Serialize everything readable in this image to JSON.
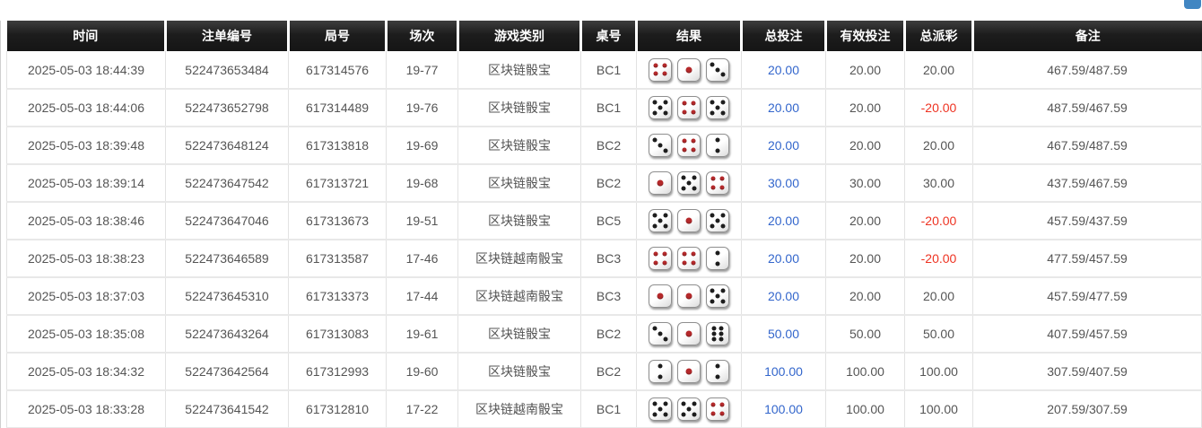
{
  "page": {
    "corner_button_color": "#4186c2"
  },
  "colors": {
    "header_bg": "#1d1d1d",
    "header_text": "#ffffff",
    "body_text": "#555555",
    "bet_link_blue": "#3366cc",
    "negative_red": "#ee3322",
    "dice_red_pip": "#b5292b",
    "dice_black_pip": "#1d1d1d",
    "row_border": "#e2e2e2"
  },
  "table": {
    "columns": [
      {
        "key": "time",
        "label": "时间"
      },
      {
        "key": "bet_id",
        "label": "注单编号"
      },
      {
        "key": "round_id",
        "label": "局号"
      },
      {
        "key": "session",
        "label": "场次"
      },
      {
        "key": "game_type",
        "label": "游戏类别"
      },
      {
        "key": "table_no",
        "label": "桌号"
      },
      {
        "key": "result",
        "label": "结果"
      },
      {
        "key": "total_bet",
        "label": "总投注"
      },
      {
        "key": "valid_bet",
        "label": "有效投注"
      },
      {
        "key": "total_payout",
        "label": "总派彩"
      },
      {
        "key": "remark",
        "label": "备注"
      }
    ],
    "rows": [
      {
        "time": "2025-05-03 18:44:39",
        "bet_id": "522473653484",
        "round_id": "617314576",
        "session": "19-77",
        "game_type": "区块链骰宝",
        "table_no": "BC1",
        "dice": [
          4,
          1,
          3
        ],
        "dice_colors": [
          "red",
          "red",
          "black"
        ],
        "total_bet": "20.00",
        "valid_bet": "20.00",
        "total_payout": "20.00",
        "payout_negative": false,
        "remark": "467.59/487.59"
      },
      {
        "time": "2025-05-03 18:44:06",
        "bet_id": "522473652798",
        "round_id": "617314489",
        "session": "19-76",
        "game_type": "区块链骰宝",
        "table_no": "BC1",
        "dice": [
          5,
          4,
          5
        ],
        "dice_colors": [
          "black",
          "red",
          "black"
        ],
        "total_bet": "20.00",
        "valid_bet": "20.00",
        "total_payout": "-20.00",
        "payout_negative": true,
        "remark": "487.59/467.59"
      },
      {
        "time": "2025-05-03 18:39:48",
        "bet_id": "522473648124",
        "round_id": "617313818",
        "session": "19-69",
        "game_type": "区块链骰宝",
        "table_no": "BC2",
        "dice": [
          3,
          4,
          2
        ],
        "dice_colors": [
          "black",
          "red",
          "black"
        ],
        "total_bet": "20.00",
        "valid_bet": "20.00",
        "total_payout": "20.00",
        "payout_negative": false,
        "remark": "467.59/487.59"
      },
      {
        "time": "2025-05-03 18:39:14",
        "bet_id": "522473647542",
        "round_id": "617313721",
        "session": "19-68",
        "game_type": "区块链骰宝",
        "table_no": "BC2",
        "dice": [
          1,
          5,
          4
        ],
        "dice_colors": [
          "red",
          "black",
          "red"
        ],
        "total_bet": "30.00",
        "valid_bet": "30.00",
        "total_payout": "30.00",
        "payout_negative": false,
        "remark": "437.59/467.59"
      },
      {
        "time": "2025-05-03 18:38:46",
        "bet_id": "522473647046",
        "round_id": "617313673",
        "session": "19-51",
        "game_type": "区块链骰宝",
        "table_no": "BC5",
        "dice": [
          5,
          1,
          5
        ],
        "dice_colors": [
          "black",
          "red",
          "black"
        ],
        "total_bet": "20.00",
        "valid_bet": "20.00",
        "total_payout": "-20.00",
        "payout_negative": true,
        "remark": "457.59/437.59"
      },
      {
        "time": "2025-05-03 18:38:23",
        "bet_id": "522473646589",
        "round_id": "617313587",
        "session": "17-46",
        "game_type": "区块链越南骰宝",
        "table_no": "BC3",
        "dice": [
          4,
          4,
          2
        ],
        "dice_colors": [
          "red",
          "red",
          "black"
        ],
        "total_bet": "20.00",
        "valid_bet": "20.00",
        "total_payout": "-20.00",
        "payout_negative": true,
        "remark": "477.59/457.59"
      },
      {
        "time": "2025-05-03 18:37:03",
        "bet_id": "522473645310",
        "round_id": "617313373",
        "session": "17-44",
        "game_type": "区块链越南骰宝",
        "table_no": "BC3",
        "dice": [
          1,
          1,
          5
        ],
        "dice_colors": [
          "red",
          "red",
          "black"
        ],
        "total_bet": "20.00",
        "valid_bet": "20.00",
        "total_payout": "20.00",
        "payout_negative": false,
        "remark": "457.59/477.59"
      },
      {
        "time": "2025-05-03 18:35:08",
        "bet_id": "522473643264",
        "round_id": "617313083",
        "session": "19-61",
        "game_type": "区块链骰宝",
        "table_no": "BC2",
        "dice": [
          3,
          1,
          6
        ],
        "dice_colors": [
          "black",
          "red",
          "black"
        ],
        "total_bet": "50.00",
        "valid_bet": "50.00",
        "total_payout": "50.00",
        "payout_negative": false,
        "remark": "407.59/457.59"
      },
      {
        "time": "2025-05-03 18:34:32",
        "bet_id": "522473642564",
        "round_id": "617312993",
        "session": "19-60",
        "game_type": "区块链骰宝",
        "table_no": "BC2",
        "dice": [
          2,
          1,
          2
        ],
        "dice_colors": [
          "black",
          "red",
          "black"
        ],
        "total_bet": "100.00",
        "valid_bet": "100.00",
        "total_payout": "100.00",
        "payout_negative": false,
        "remark": "307.59/407.59"
      },
      {
        "time": "2025-05-03 18:33:28",
        "bet_id": "522473641542",
        "round_id": "617312810",
        "session": "17-22",
        "game_type": "区块链越南骰宝",
        "table_no": "BC1",
        "dice": [
          5,
          5,
          4
        ],
        "dice_colors": [
          "black",
          "black",
          "red"
        ],
        "total_bet": "100.00",
        "valid_bet": "100.00",
        "total_payout": "100.00",
        "payout_negative": false,
        "remark": "207.59/307.59"
      }
    ]
  }
}
